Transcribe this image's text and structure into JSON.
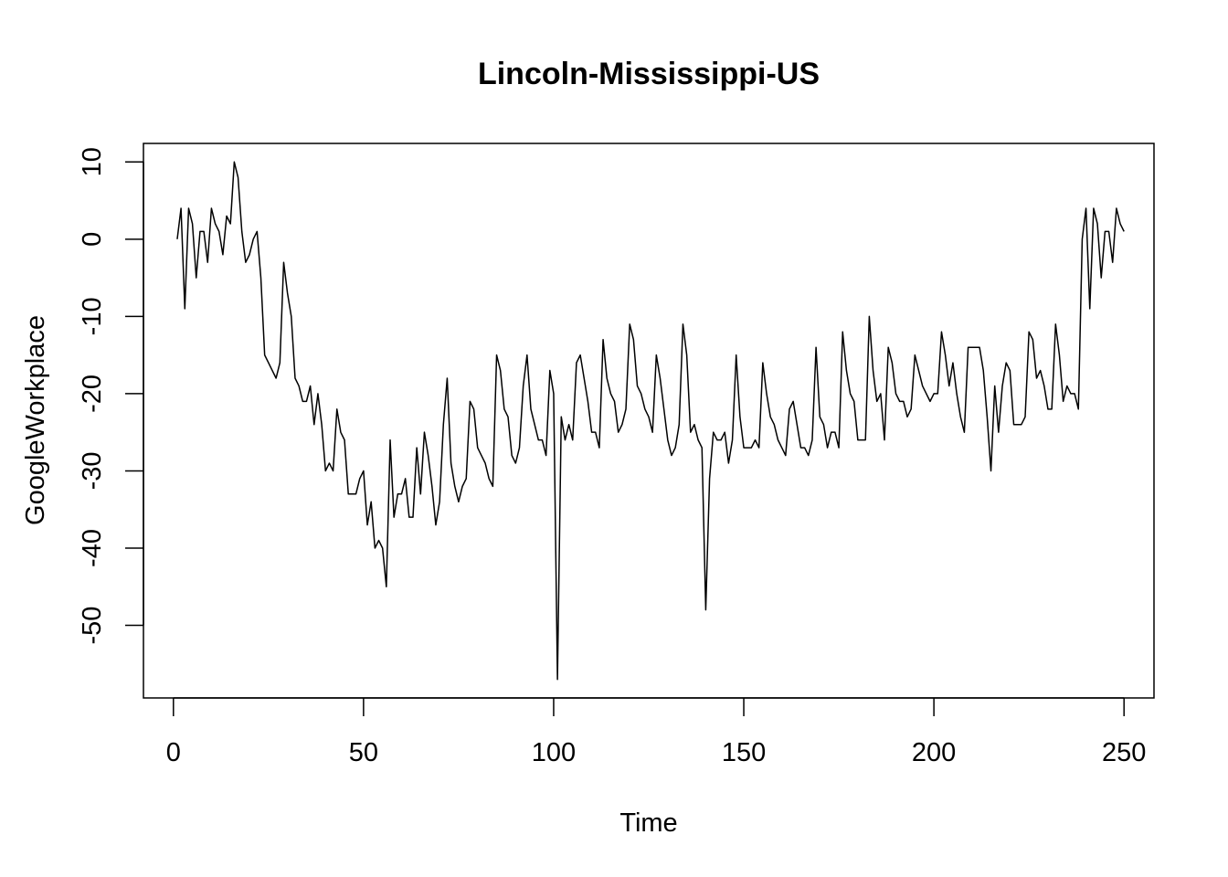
{
  "chart_data": {
    "type": "line",
    "title": "Lincoln-Mississippi-US",
    "xlabel": "Time",
    "ylabel": "GoogleWorkplace",
    "xlim": [
      -7.88,
      257.88
    ],
    "ylim": [
      -59.4,
      12.4
    ],
    "x_ticks": [
      0,
      50,
      100,
      150,
      200,
      250
    ],
    "x_tick_labels": [
      "0",
      "50",
      "100",
      "150",
      "200",
      "250"
    ],
    "y_ticks": [
      -50,
      -40,
      -30,
      -20,
      -10,
      0,
      10
    ],
    "y_tick_labels": [
      "-50",
      "-40",
      "-30",
      "-20",
      "-10",
      "0",
      "10"
    ],
    "grid": false,
    "series": [
      {
        "color": "#000000",
        "x_start": 1,
        "values": [
          0,
          4,
          -9,
          4,
          2,
          -5,
          1,
          1,
          -3,
          4,
          2,
          1,
          -2,
          3,
          2,
          10,
          8,
          1,
          -3,
          -2,
          0,
          1,
          -5,
          -15,
          -16,
          -17,
          -18,
          -16,
          -3,
          -7,
          -10,
          -18,
          -19,
          -21,
          -21,
          -19,
          -24,
          -20,
          -24,
          -30,
          -29,
          -30,
          -22,
          -25,
          -26,
          -33,
          -33,
          -33,
          -31,
          -30,
          -37,
          -34,
          -40,
          -39,
          -40,
          -45,
          -26,
          -36,
          -33,
          -33,
          -31,
          -36,
          -36,
          -27,
          -33,
          -25,
          -28,
          -32,
          -37,
          -34,
          -24,
          -18,
          -29,
          -32,
          -34,
          -32,
          -31,
          -21,
          -22,
          -27,
          -28,
          -29,
          -31,
          -32,
          -15,
          -17,
          -22,
          -23,
          -28,
          -29,
          -27,
          -19,
          -15,
          -22,
          -24,
          -26,
          -26,
          -28,
          -17,
          -20,
          -57,
          -23,
          -26,
          -24,
          -26,
          -16,
          -15,
          -18,
          -21,
          -25,
          -25,
          -27,
          -13,
          -18,
          -20,
          -21,
          -25,
          -24,
          -22,
          -11,
          -13,
          -19,
          -20,
          -22,
          -23,
          -25,
          -15,
          -18,
          -22,
          -26,
          -28,
          -27,
          -24,
          -11,
          -15,
          -25,
          -24,
          -26,
          -27,
          -48,
          -31,
          -25,
          -26,
          -26,
          -25,
          -29,
          -26,
          -15,
          -23,
          -27,
          -27,
          -27,
          -26,
          -27,
          -16,
          -20,
          -23,
          -24,
          -26,
          -27,
          -28,
          -22,
          -21,
          -24,
          -27,
          -27,
          -28,
          -26,
          -14,
          -23,
          -24,
          -27,
          -25,
          -25,
          -27,
          -12,
          -17,
          -20,
          -21,
          -26,
          -26,
          -26,
          -10,
          -17,
          -21,
          -20,
          -26,
          -14,
          -16,
          -20,
          -21,
          -21,
          -23,
          -22,
          -15,
          -17,
          -19,
          -20,
          -21,
          -20,
          -20,
          -12,
          -15,
          -19,
          -16,
          -20,
          -23,
          -25,
          -14,
          -14,
          -14,
          -14,
          -17,
          -23,
          -30,
          -19,
          -25,
          -19,
          -16,
          -17,
          -24,
          -24,
          -24,
          -23,
          -12,
          -13,
          -18,
          -17,
          -19,
          -22,
          -22,
          -11,
          -15,
          -21,
          -19,
          -20,
          -20,
          -22,
          0,
          4,
          -9,
          4,
          2,
          -5,
          1,
          1,
          -3,
          4,
          2,
          1
        ]
      }
    ]
  }
}
